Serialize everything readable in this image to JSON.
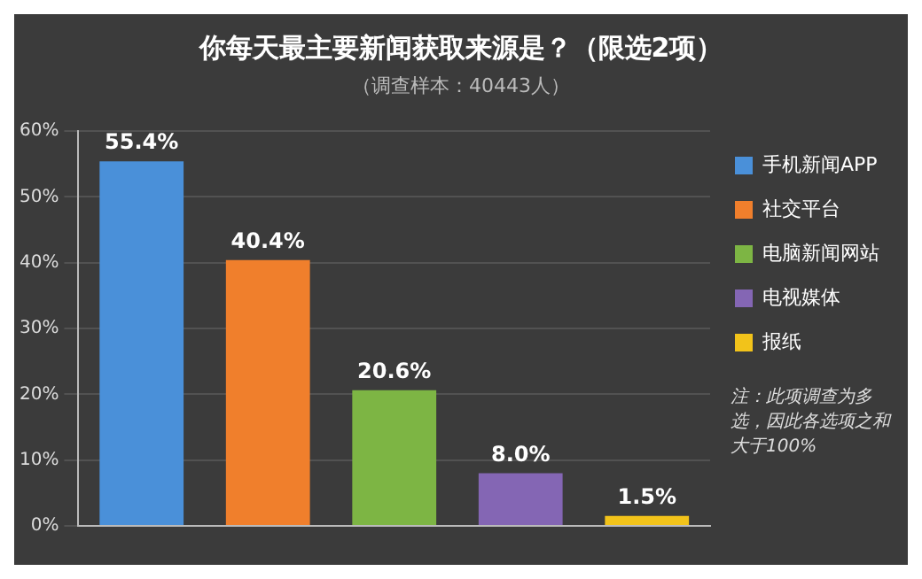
{
  "chart_data": {
    "type": "bar",
    "title": "你每天最主要新闻获取来源是？（限选2项）",
    "subtitle": "（调查样本：40443人）",
    "categories": [
      null,
      null,
      null,
      null,
      null
    ],
    "series": [
      {
        "name": "手机新闻APP",
        "color": "#4a90d9",
        "values": [
          55.4,
          null,
          null,
          null,
          null
        ]
      },
      {
        "name": "社交平台",
        "color": "#f07f2c",
        "values": [
          null,
          40.4,
          null,
          null,
          null
        ]
      },
      {
        "name": "电脑新闻网站",
        "color": "#7db544",
        "values": [
          null,
          null,
          20.6,
          null,
          null
        ]
      },
      {
        "name": "电视媒体",
        "color": "#8466b4",
        "values": [
          null,
          null,
          null,
          8.0,
          null
        ]
      },
      {
        "name": "报纸",
        "color": "#f2c31a",
        "values": [
          null,
          null,
          null,
          null,
          1.5
        ]
      }
    ],
    "value_labels": [
      "55.4%",
      "40.4%",
      "20.6%",
      "8.0%",
      "1.5%"
    ],
    "ylim": [
      0,
      60
    ],
    "yticks": [
      {
        "value": 0,
        "label": "0%"
      },
      {
        "value": 10,
        "label": "10%"
      },
      {
        "value": 20,
        "label": "20%"
      },
      {
        "value": 30,
        "label": "30%"
      },
      {
        "value": 40,
        "label": "40%"
      },
      {
        "value": 50,
        "label": "50%"
      },
      {
        "value": 60,
        "label": "60%"
      }
    ],
    "grid": "y",
    "legend": "right",
    "annotations": [
      "注：此项调查为多选，因此各选项之和大于100%"
    ]
  }
}
